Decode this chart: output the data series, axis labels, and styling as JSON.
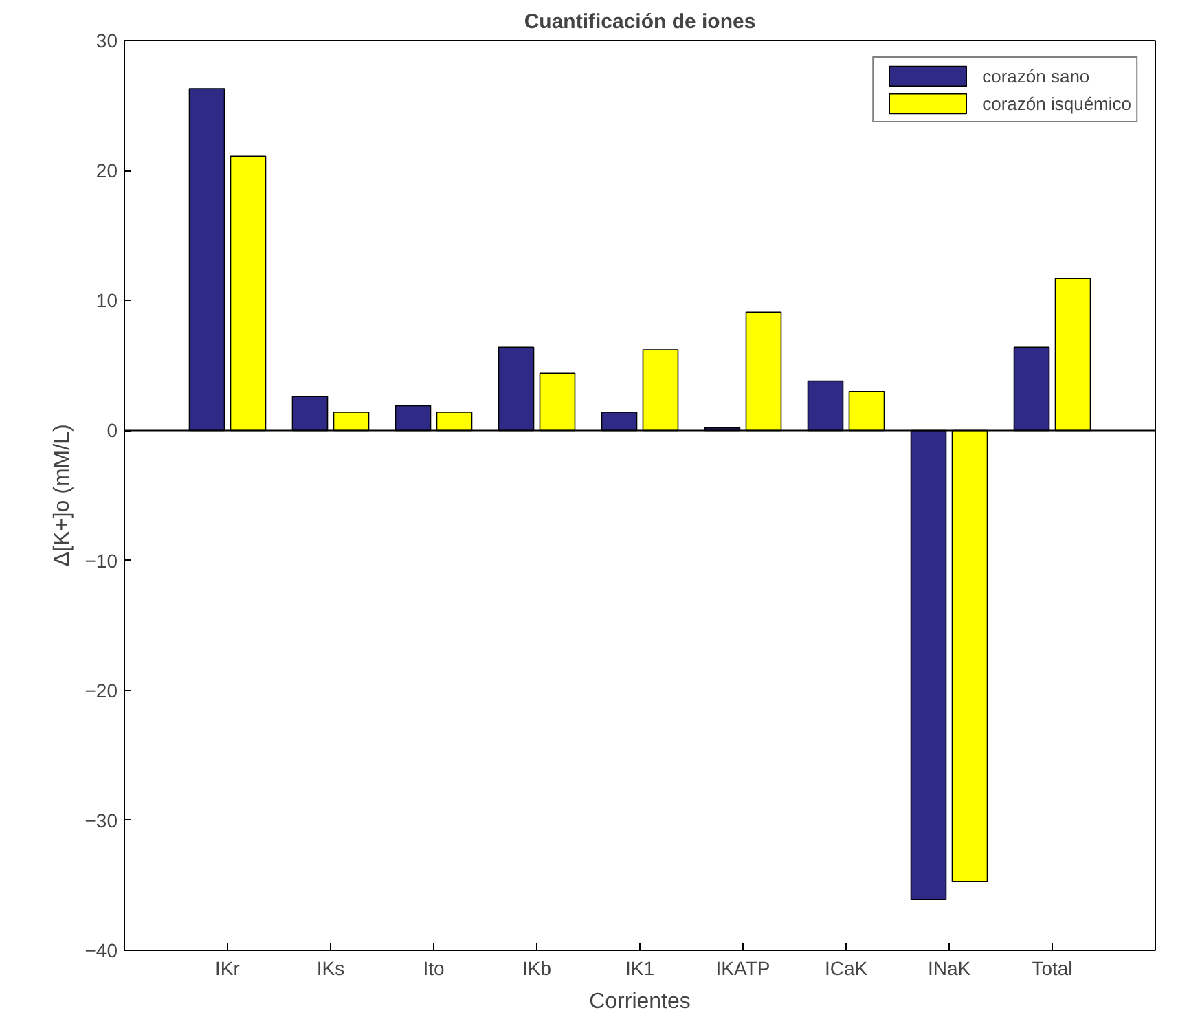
{
  "chart_data": {
    "type": "bar",
    "title": "Cuantificación de iones",
    "xlabel": "Corrientes",
    "ylabel": "Δ[K+]o (mM/L)",
    "categories": [
      "IKr",
      "IKs",
      "Ito",
      "IKb",
      "IK1",
      "IKATP",
      "ICaK",
      "INaK",
      "Total"
    ],
    "series": [
      {
        "name": "corazón sano",
        "color": "#2e2a85",
        "values": [
          26.3,
          2.6,
          1.9,
          6.4,
          1.4,
          0.2,
          3.8,
          -36.1,
          6.4
        ]
      },
      {
        "name": "corazón isquémico",
        "color": "#ffff00",
        "values": [
          21.1,
          1.4,
          1.4,
          4.4,
          6.2,
          9.1,
          3.0,
          -34.7,
          11.7
        ]
      }
    ],
    "ylim": [
      -40,
      30
    ],
    "yticks": [
      -40,
      -30,
      -20,
      -10,
      0,
      10,
      20,
      30
    ],
    "ref_lines": [
      {
        "axis": "y",
        "value": 0,
        "color": "#000000"
      }
    ],
    "legend": "top right"
  }
}
